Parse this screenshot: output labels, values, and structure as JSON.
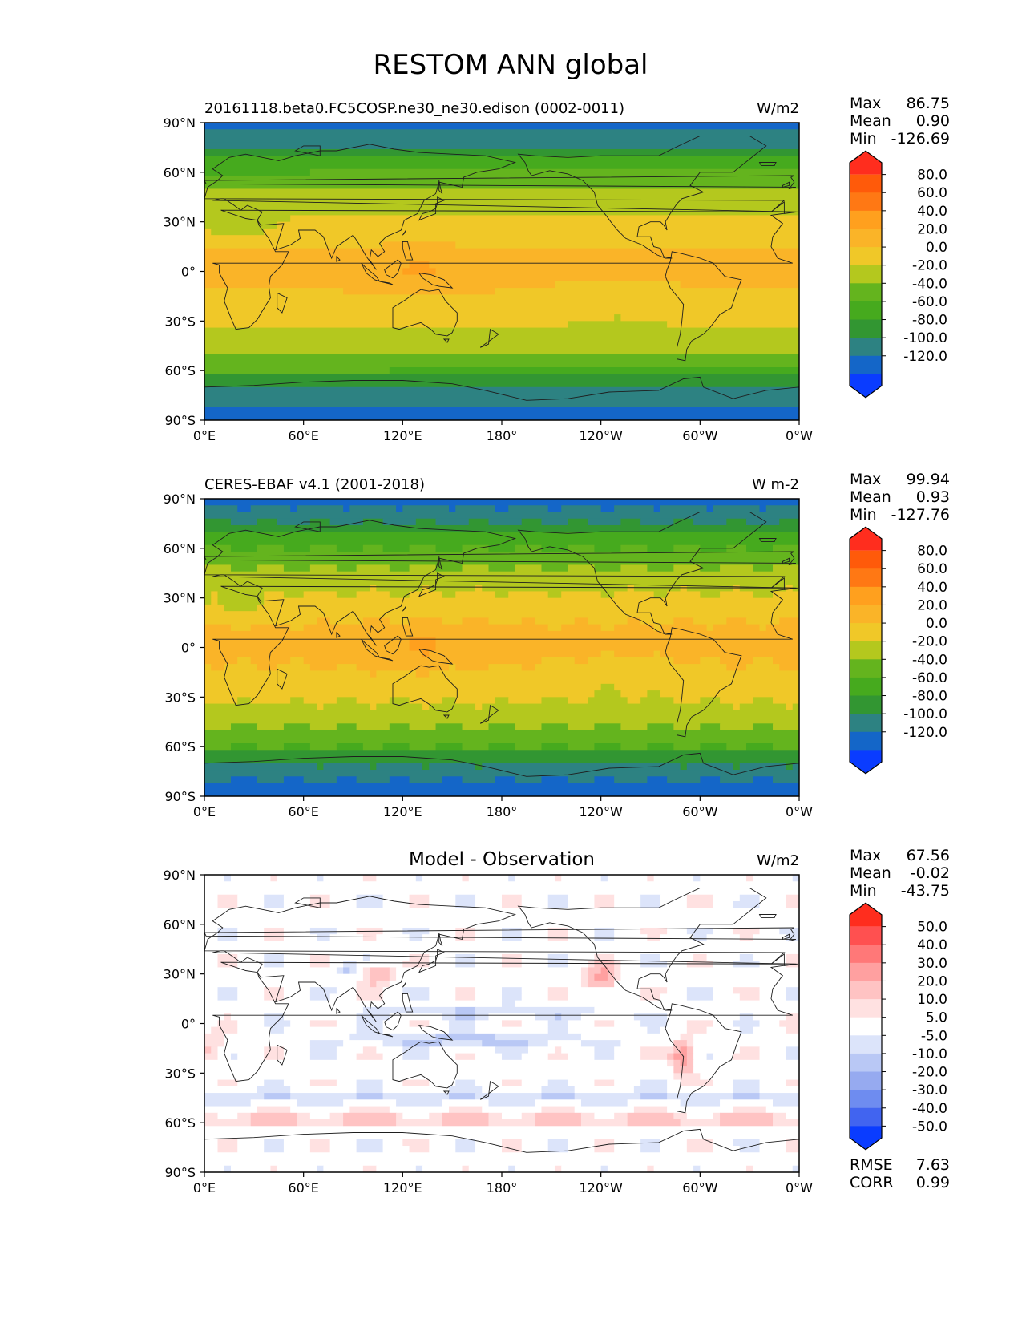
{
  "figure": {
    "title": "RESTOM ANN global"
  },
  "axes": {
    "lat_ticks": [
      "90°N",
      "60°N",
      "30°N",
      "0°",
      "30°S",
      "60°S",
      "90°S"
    ],
    "lon_ticks": [
      "0°E",
      "60°E",
      "120°E",
      "180°",
      "120°W",
      "60°W",
      "0°W"
    ]
  },
  "stats_labels": {
    "max": "Max",
    "mean": "Mean",
    "min": "Min",
    "rmse": "RMSE",
    "corr": "CORR"
  },
  "colors": {
    "abs_levels": [
      "#0a3cff",
      "#1466c8",
      "#2d8282",
      "#329632",
      "#46aa1e",
      "#64b41e",
      "#b4c81e",
      "#f0c828",
      "#fab428",
      "#ffa01e",
      "#ff7814",
      "#ff5a0a",
      "#ff2d1e"
    ],
    "diff_levels": [
      "#0a3cff",
      "#4164f0",
      "#6e8cf0",
      "#96aaf0",
      "#b9c8f5",
      "#dce4fa",
      "#ffffff",
      "#ffe1e1",
      "#ffc3c3",
      "#ffa0a0",
      "#ff7878",
      "#ff5050",
      "#ff2d1e"
    ],
    "coast": "#1e1e1e"
  },
  "chart_data": [
    {
      "type": "heatmap",
      "id": "test",
      "title": "",
      "left_title": "20161118.beta0.FC5COSP.ne30_ne30.edison (0002-0011)",
      "units": "W/m2",
      "stats": {
        "max": "86.75",
        "mean": "0.90",
        "min": "-126.69"
      },
      "xlim": [
        0,
        360
      ],
      "ylim": [
        -90,
        90
      ],
      "colorbar_labels": [
        "80.0",
        "60.0",
        "40.0",
        "20.0",
        "0.0",
        "-20.0",
        "-40.0",
        "-60.0",
        "-80.0",
        "-100.0",
        "-120.0"
      ],
      "colorbar_bounds": [
        -140,
        -120,
        -100,
        -80,
        -60,
        -40,
        -20,
        0,
        20,
        40,
        60,
        80,
        100
      ]
    },
    {
      "type": "heatmap",
      "id": "ref",
      "title": "",
      "left_title": "CERES-EBAF v4.1 (2001-2018)",
      "units": "W m-2",
      "stats": {
        "max": "99.94",
        "mean": "0.93",
        "min": "-127.76"
      },
      "xlim": [
        0,
        360
      ],
      "ylim": [
        -90,
        90
      ],
      "colorbar_labels": [
        "80.0",
        "60.0",
        "40.0",
        "20.0",
        "0.0",
        "-20.0",
        "-40.0",
        "-60.0",
        "-80.0",
        "-100.0",
        "-120.0"
      ],
      "colorbar_bounds": [
        -140,
        -120,
        -100,
        -80,
        -60,
        -40,
        -20,
        0,
        20,
        40,
        60,
        80,
        100
      ]
    },
    {
      "type": "heatmap",
      "id": "diff",
      "title": "Model - Observation",
      "left_title": "",
      "units": "W/m2",
      "stats": {
        "max": "67.56",
        "mean": "-0.02",
        "min": "-43.75",
        "rmse": "7.63",
        "corr": "0.99"
      },
      "xlim": [
        0,
        360
      ],
      "ylim": [
        -90,
        90
      ],
      "colorbar_labels": [
        "50.0",
        "40.0",
        "30.0",
        "20.0",
        "10.0",
        "5.0",
        "-5.0",
        "-10.0",
        "-20.0",
        "-30.0",
        "-40.0",
        "-50.0"
      ],
      "colorbar_bounds": [
        -60,
        -50,
        -40,
        -30,
        -20,
        -10,
        -5,
        5,
        10,
        20,
        30,
        40,
        50,
        60
      ]
    }
  ]
}
